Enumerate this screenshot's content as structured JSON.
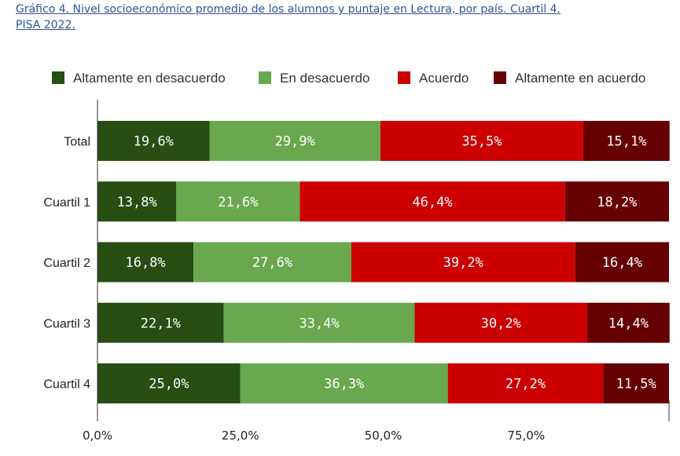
{
  "caption": {
    "line1": "Gráfico 4. Nivel socioeconómico promedio de los alumnos y puntaje en Lectura, por país. Cuartil 4.",
    "line2": "PISA 2022."
  },
  "chart_data": {
    "type": "bar",
    "orientation": "horizontal",
    "stacked": true,
    "categories": [
      "Total",
      "Cuartil 1",
      "Cuartil 2",
      "Cuartil 3",
      "Cuartil 4"
    ],
    "series": [
      {
        "name": "Altamente en desacuerdo",
        "color": "#274e13",
        "values": [
          19.6,
          13.8,
          16.8,
          22.1,
          25.0
        ],
        "labels": [
          "19,6%",
          "13,8%",
          "16,8%",
          "22,1%",
          "25,0%"
        ]
      },
      {
        "name": "En desacuerdo",
        "color": "#6aa84f",
        "values": [
          29.9,
          21.6,
          27.6,
          33.4,
          36.3
        ],
        "labels": [
          "29,9%",
          "21,6%",
          "27,6%",
          "33,4%",
          "36,3%"
        ]
      },
      {
        "name": "Acuerdo",
        "color": "#cc0000",
        "values": [
          35.5,
          46.4,
          39.2,
          30.2,
          27.2
        ],
        "labels": [
          "35,5%",
          "46,4%",
          "39,2%",
          "30,2%",
          "27,2%"
        ]
      },
      {
        "name": "Altamente en acuerdo",
        "color": "#660000",
        "values": [
          15.1,
          18.2,
          16.4,
          14.4,
          11.5
        ],
        "labels": [
          "15,1%",
          "18,2%",
          "16,4%",
          "14,4%",
          "11,5%"
        ]
      }
    ],
    "xlim": [
      0,
      100
    ],
    "x_ticks": [
      0,
      25,
      50,
      75
    ],
    "x_tick_labels": [
      "0,0%",
      "25,0%",
      "50,0%",
      "75,0%"
    ],
    "legend_position": "top",
    "grid": false
  }
}
